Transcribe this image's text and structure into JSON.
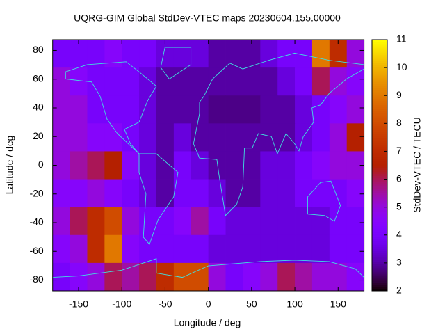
{
  "chart_data": {
    "type": "heatmap",
    "title": "UQRG-GIM Global StdDev-VTEC maps 20230604.155.00000",
    "x_label": "Longitude / deg",
    "y_label": "Latitude / deg",
    "colorbar_label": "StdDev-VTEC / TECU",
    "xlim": [
      -180,
      180
    ],
    "ylim": [
      -87.5,
      87.5
    ],
    "zlim": [
      2,
      11
    ],
    "xticks": [
      -150,
      -100,
      -50,
      0,
      50,
      100,
      150
    ],
    "yticks": [
      -80,
      -60,
      -40,
      -20,
      0,
      20,
      40,
      60,
      80
    ],
    "zticks": [
      2,
      3,
      4,
      5,
      6,
      7,
      8,
      9,
      10,
      11
    ],
    "z": [
      [
        4,
        4,
        4,
        4.5,
        4,
        4,
        3.5,
        3.5,
        3.5,
        3,
        3,
        3,
        3.5,
        4,
        4,
        9,
        7,
        5
      ],
      [
        5,
        4.5,
        4,
        4,
        4,
        3.5,
        3,
        3,
        3,
        3,
        3,
        3,
        3,
        3.5,
        4,
        6,
        5,
        4.5
      ],
      [
        5,
        5,
        4,
        4,
        4,
        3.5,
        3,
        3,
        3,
        2.8,
        2.8,
        2.8,
        3,
        3,
        3.5,
        4,
        4.5,
        5
      ],
      [
        5,
        5,
        4.5,
        4.5,
        4,
        3.5,
        3,
        3.5,
        3,
        3,
        3,
        3,
        3,
        3,
        3.5,
        4,
        5,
        6.5
      ],
      [
        5,
        5.5,
        6,
        6.5,
        4.5,
        3.5,
        3,
        4,
        3.5,
        3,
        3,
        3,
        3.5,
        3.5,
        4,
        4.5,
        5,
        5
      ],
      [
        4.5,
        4.5,
        5,
        4.5,
        4,
        3.5,
        3,
        4,
        4,
        3.5,
        3,
        3,
        3.5,
        3.5,
        4,
        4,
        4,
        4.5
      ],
      [
        5,
        6,
        7,
        8,
        5,
        4,
        4,
        4.5,
        5.5,
        4,
        3.5,
        3.5,
        3.5,
        3.5,
        3.5,
        3.5,
        4,
        4
      ],
      [
        4.5,
        5,
        7,
        9,
        4.5,
        4,
        4,
        4,
        4,
        3.5,
        3.5,
        3.5,
        3.5,
        3.5,
        3.5,
        3.5,
        4,
        4
      ],
      [
        4,
        4.5,
        5,
        6,
        5.5,
        6,
        7,
        8,
        8,
        5,
        4,
        4.5,
        5,
        6,
        5.5,
        5,
        5,
        4.5
      ]
    ]
  }
}
